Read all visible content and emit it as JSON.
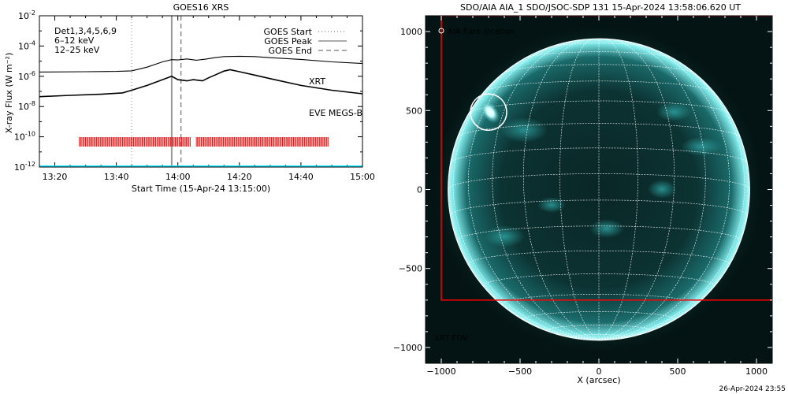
{
  "chart_data": [
    {
      "type": "line",
      "title": "GOES16 XRS",
      "xlabel": "Start Time (15-Apr-24 13:15:00)",
      "ylabel": "X-ray Flux (W m⁻²)",
      "y_scale": "log",
      "ylim": [
        1e-12,
        0.01
      ],
      "xlim": [
        "13:15",
        "15:00"
      ],
      "x_ticks": [
        "13:20",
        "13:40",
        "14:00",
        "14:20",
        "14:40",
        "15:00"
      ],
      "y_ticks": [
        {
          "base": "10",
          "exp": "-12"
        },
        {
          "base": "10",
          "exp": "-10"
        },
        {
          "base": "10",
          "exp": "-8"
        },
        {
          "base": "10",
          "exp": "-6"
        },
        {
          "base": "10",
          "exp": "-4"
        },
        {
          "base": "10",
          "exp": "-2"
        }
      ],
      "legend_left": [
        {
          "text": "Det1,3,4,5,6,9",
          "color": "#000000"
        },
        {
          "text": "6–12 keV",
          "color": "#d400d4"
        },
        {
          "text": "12–25 keV",
          "color": "#00cc00"
        }
      ],
      "legend_right": [
        {
          "text": "GOES Start",
          "style": "dotted"
        },
        {
          "text": "GOES Peak",
          "style": "solid"
        },
        {
          "text": "GOES End",
          "style": "dashed"
        }
      ],
      "annotations": [
        {
          "text": "XRT",
          "color": "#ff0000"
        },
        {
          "text": "EVE MEGS-B",
          "color": "#00ffff"
        }
      ],
      "markers": {
        "goes_start": "13:45",
        "goes_peak": "13:58",
        "goes_end": "14:01"
      },
      "series": [
        {
          "color": "#000000",
          "x": [
            "13:15",
            "13:30",
            "13:40",
            "13:45",
            "13:50",
            "13:55",
            "13:58",
            "14:00",
            "14:03",
            "14:06",
            "14:09",
            "14:12",
            "14:15",
            "14:20",
            "14:25",
            "14:30",
            "14:40",
            "14:50",
            "15:00"
          ],
          "values": [
            1.9e-06,
            2e-06,
            2.1e-06,
            2.3e-06,
            4e-06,
            9e-06,
            1.25e-05,
            1.2e-05,
            1.4e-05,
            1.15e-05,
            1.35e-05,
            1.7e-05,
            2e-05,
            2.1e-05,
            2e-05,
            1.7e-05,
            1.3e-05,
            9e-06,
            7e-06
          ]
        },
        {
          "color": "#000000",
          "x": [
            "13:15",
            "13:25",
            "13:35",
            "13:42",
            "13:45",
            "13:50",
            "13:55",
            "13:58",
            "14:00",
            "14:03",
            "14:05",
            "14:08",
            "14:10",
            "14:12",
            "14:15",
            "14:17",
            "14:20",
            "14:25",
            "14:30",
            "14:40",
            "14:50",
            "15:00"
          ],
          "values": [
            4.5e-08,
            5.5e-08,
            6.5e-08,
            8e-08,
            1.2e-07,
            2.5e-07,
            6e-07,
            1e-06,
            6e-07,
            5e-07,
            6e-07,
            5e-07,
            8e-07,
            1.2e-06,
            2.2e-06,
            2.7e-06,
            2e-06,
            1.2e-06,
            7e-07,
            2.5e-07,
            1.2e-07,
            7e-08
          ]
        }
      ],
      "xrt_coverage": [
        [
          "13:28",
          "14:04"
        ],
        [
          "14:06",
          "14:49"
        ]
      ],
      "eve_level": 1e-12,
      "timestamp": "26-Apr-2024 23:55"
    },
    {
      "type": "image",
      "title": "SDO/AIA AIA_1 SDO/JSOC-SDP 131 15-Apr-2024 13:58:06.620 UT",
      "xlabel": "X (arcsec)",
      "ylabel": "",
      "xlim": [
        -1100,
        1100
      ],
      "ylim": [
        -1100,
        1100
      ],
      "x_ticks": [
        -1000,
        -500,
        0,
        500,
        1000
      ],
      "y_ticks": [
        -1000,
        -500,
        0,
        500,
        1000
      ],
      "x_tick_labels": [
        "−1000",
        "−500",
        "0",
        "500",
        "1000"
      ],
      "y_tick_labels": [
        "−1000",
        "−500",
        "0",
        "500",
        "1000"
      ],
      "legend": "AIA flare location",
      "fov_label": "XRT FOV",
      "flare_location": {
        "x": -700,
        "y": 490,
        "radius": 115
      },
      "solar_radius": 957,
      "xrt_fov": {
        "x0": -1000,
        "x1": 1100,
        "y0": -700,
        "y1": 1100
      },
      "colors": {
        "fov": "#ff0000",
        "disk": "#00d8d8",
        "grid": "#ffffff"
      }
    }
  ],
  "footer": {
    "timestamp": "26-Apr-2024 23:55"
  }
}
